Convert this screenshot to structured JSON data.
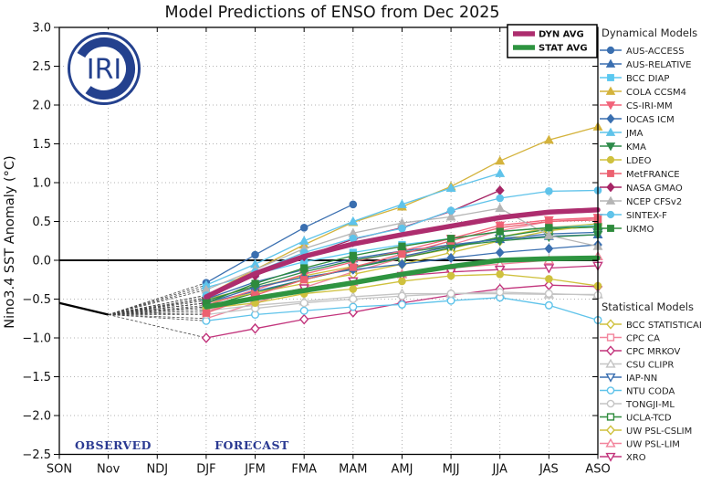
{
  "title": "Model Predictions of ENSO from Dec 2025",
  "logo_text": "IRI",
  "labels": {
    "observed": "OBSERVED",
    "forecast": "FORECAST"
  },
  "avg_legend": [
    {
      "label": "DYN AVG",
      "color": "#ad2d6e"
    },
    {
      "label": "STAT AVG",
      "color": "#2e9440"
    }
  ],
  "legend": {
    "dynamical_title": "Dynamical Models",
    "statistical_title": "Statistical Models"
  },
  "colors": {
    "grid": "#9a9a9a",
    "frame": "#000000",
    "zero_line": "#111111",
    "observed_line": "#000000",
    "fan_line": "#444444",
    "logo_navy": "#24418e",
    "annotation_navy": "#2b3a92"
  },
  "chart_data": {
    "type": "line",
    "title": "Model Predictions of ENSO from Dec 2025",
    "xlabel": "",
    "ylabel": "Nino3.4 SST Anomaly (°C)",
    "ylim": [
      -2.5,
      3.0
    ],
    "ytick_step": 0.5,
    "grid": true,
    "x_categories": [
      "SON",
      "Nov",
      "NDJ",
      "DJF",
      "JFM",
      "FMA",
      "MAM",
      "AMJ",
      "MJJ",
      "JJA",
      "JAS",
      "ASO"
    ],
    "forecast_start_index": 3,
    "observed": {
      "x": [
        "SON",
        "Nov"
      ],
      "values": [
        -0.55,
        -0.7
      ]
    },
    "fan_origin": {
      "x": "Nov",
      "value": -0.7
    },
    "series": [
      {
        "name": "AUS-ACCESS",
        "group": "dynamical",
        "color": "#3a6fb0",
        "marker": "circle",
        "filled": true,
        "values": [
          -0.29,
          0.07,
          0.42,
          0.72,
          null,
          null,
          null,
          null,
          null
        ]
      },
      {
        "name": "AUS-RELATIVE",
        "group": "dynamical",
        "color": "#3a6fb0",
        "marker": "tri-up",
        "filled": true,
        "values": [
          -0.5,
          -0.28,
          -0.12,
          0.02,
          0.12,
          0.2,
          0.27,
          0.31,
          0.33
        ]
      },
      {
        "name": "BCC DIAP",
        "group": "dynamical",
        "color": "#5bc8f0",
        "marker": "square",
        "filled": true,
        "values": [
          -0.35,
          -0.18,
          -0.02,
          0.1,
          0.2,
          0.28,
          0.37,
          0.42,
          0.45
        ]
      },
      {
        "name": "COLA CCSM4",
        "group": "dynamical",
        "color": "#d4b33c",
        "marker": "tri-up",
        "filled": true,
        "values": [
          -0.45,
          -0.12,
          0.2,
          0.49,
          0.69,
          0.95,
          1.28,
          1.55,
          1.72
        ]
      },
      {
        "name": "CS-IRI-MM",
        "group": "dynamical",
        "color": "#f2637a",
        "marker": "tri-down",
        "filled": true,
        "values": [
          -0.58,
          -0.38,
          -0.18,
          -0.02,
          0.12,
          0.28,
          0.45,
          0.52,
          0.55
        ]
      },
      {
        "name": "IOCAS ICM",
        "group": "dynamical",
        "color": "#3a6fb0",
        "marker": "diamond",
        "filled": true,
        "values": [
          -0.55,
          -0.35,
          -0.22,
          -0.12,
          -0.05,
          0.03,
          0.1,
          0.15,
          0.2
        ]
      },
      {
        "name": "JMA",
        "group": "dynamical",
        "color": "#5fc3ea",
        "marker": "tri-up",
        "filled": true,
        "values": [
          -0.32,
          -0.05,
          0.25,
          0.5,
          0.72,
          0.93,
          1.12,
          null,
          null
        ]
      },
      {
        "name": "KMA",
        "group": "dynamical",
        "color": "#2e8b4a",
        "marker": "tri-down",
        "filled": true,
        "values": [
          -0.52,
          -0.33,
          -0.15,
          0.0,
          0.1,
          0.18,
          0.25,
          0.3,
          0.33
        ]
      },
      {
        "name": "LDEO",
        "group": "dynamical",
        "color": "#cfc13e",
        "marker": "circle",
        "filled": true,
        "values": [
          -0.62,
          -0.55,
          -0.43,
          -0.37,
          -0.27,
          -0.2,
          -0.18,
          -0.24,
          -0.33
        ]
      },
      {
        "name": "MetFRANCE",
        "group": "dynamical",
        "color": "#ec6170",
        "marker": "square",
        "filled": true,
        "values": [
          -0.68,
          -0.45,
          -0.25,
          -0.09,
          0.08,
          0.25,
          0.42,
          0.5,
          0.52
        ]
      },
      {
        "name": "NASA GMAO",
        "group": "dynamical",
        "color": "#a62565",
        "marker": "diamond",
        "filled": true,
        "values": [
          -0.48,
          -0.2,
          0.05,
          0.27,
          0.42,
          0.63,
          0.9,
          null,
          null
        ]
      },
      {
        "name": "NCEP CFSv2",
        "group": "dynamical",
        "color": "#b5b5b5",
        "marker": "tri-up",
        "filled": true,
        "values": [
          -0.38,
          -0.12,
          0.15,
          0.35,
          0.48,
          0.56,
          0.67,
          0.32,
          0.18
        ]
      },
      {
        "name": "SINTEX-F",
        "group": "dynamical",
        "color": "#5fc3ea",
        "marker": "circle",
        "filled": true,
        "values": [
          -0.45,
          -0.15,
          0.1,
          0.28,
          0.41,
          0.64,
          0.8,
          0.89,
          0.9
        ]
      },
      {
        "name": "UKMO",
        "group": "dynamical",
        "color": "#2e8b3c",
        "marker": "square",
        "filled": true,
        "values": [
          -0.55,
          -0.3,
          -0.1,
          0.06,
          0.18,
          0.28,
          0.37,
          0.42,
          0.43
        ]
      },
      {
        "name": "BCC STATISTICAL",
        "group": "statistical",
        "color": "#cfc13e",
        "marker": "diamond",
        "filled": false,
        "values": [
          -0.5,
          -0.35,
          -0.2,
          -0.08,
          0.03,
          0.15,
          0.3,
          0.42,
          0.47
        ]
      },
      {
        "name": "CPC CA",
        "group": "statistical",
        "color": "#f2849c",
        "marker": "square",
        "filled": false,
        "values": [
          -0.75,
          -0.55,
          -0.35,
          -0.15,
          0.03,
          0.2,
          0.38,
          0.5,
          0.54
        ]
      },
      {
        "name": "CPC MRKOV",
        "group": "statistical",
        "color": "#c2347c",
        "marker": "diamond",
        "filled": false,
        "values": [
          -1.0,
          -0.88,
          -0.76,
          -0.67,
          -0.55,
          -0.45,
          -0.37,
          -0.32,
          -0.34
        ]
      },
      {
        "name": "CSU CLIPR",
        "group": "statistical",
        "color": "#c4c4c4",
        "marker": "tri-up",
        "filled": false,
        "values": [
          -0.65,
          -0.58,
          -0.53,
          -0.47,
          -0.43,
          -0.43,
          -0.43,
          -0.44,
          -0.44
        ]
      },
      {
        "name": "IAP-NN",
        "group": "statistical",
        "color": "#3a6fb0",
        "marker": "tri-down",
        "filled": false,
        "values": [
          -0.55,
          -0.4,
          -0.25,
          -0.1,
          0.05,
          0.18,
          0.28,
          0.34,
          0.36
        ]
      },
      {
        "name": "NTU CODA",
        "group": "statistical",
        "color": "#5fc3ea",
        "marker": "circle",
        "filled": false,
        "values": [
          -0.78,
          -0.7,
          -0.65,
          -0.6,
          -0.57,
          -0.52,
          -0.48,
          -0.58,
          -0.77
        ]
      },
      {
        "name": "TONGJI-ML",
        "group": "statistical",
        "color": "#c4c4c4",
        "marker": "circle",
        "filled": false,
        "values": [
          -0.7,
          -0.62,
          -0.55,
          -0.5,
          -0.46,
          -0.43,
          -0.41,
          -0.43,
          -0.45
        ]
      },
      {
        "name": "UCLA-TCD",
        "group": "statistical",
        "color": "#2e8b3c",
        "marker": "square",
        "filled": false,
        "values": [
          -0.6,
          -0.42,
          -0.25,
          -0.1,
          0.03,
          0.16,
          0.3,
          0.4,
          0.43
        ]
      },
      {
        "name": "UW PSL-CSLIM",
        "group": "statistical",
        "color": "#cfc13e",
        "marker": "diamond",
        "filled": false,
        "values": [
          -0.55,
          -0.42,
          -0.3,
          -0.18,
          -0.05,
          0.1,
          0.25,
          0.38,
          0.45
        ]
      },
      {
        "name": "UW PSL-LIM",
        "group": "statistical",
        "color": "#f2849c",
        "marker": "tri-up",
        "filled": false,
        "values": [
          -0.65,
          -0.5,
          -0.38,
          -0.28,
          -0.18,
          -0.1,
          -0.05,
          0.0,
          0.05
        ]
      },
      {
        "name": "XRO",
        "group": "statistical",
        "color": "#c2347c",
        "marker": "tri-down",
        "filled": false,
        "values": [
          -0.6,
          -0.48,
          -0.36,
          -0.27,
          -0.2,
          -0.15,
          -0.12,
          -0.1,
          -0.07
        ]
      }
    ],
    "averages": [
      {
        "name": "DYN AVG",
        "color": "#ad2d6e",
        "values": [
          -0.47,
          -0.17,
          0.05,
          0.21,
          0.33,
          0.44,
          0.55,
          0.62,
          0.65
        ]
      },
      {
        "name": "STAT AVG",
        "color": "#2e9440",
        "values": [
          -0.6,
          -0.49,
          -0.39,
          -0.29,
          -0.18,
          -0.08,
          0.0,
          0.02,
          0.03
        ]
      }
    ]
  }
}
